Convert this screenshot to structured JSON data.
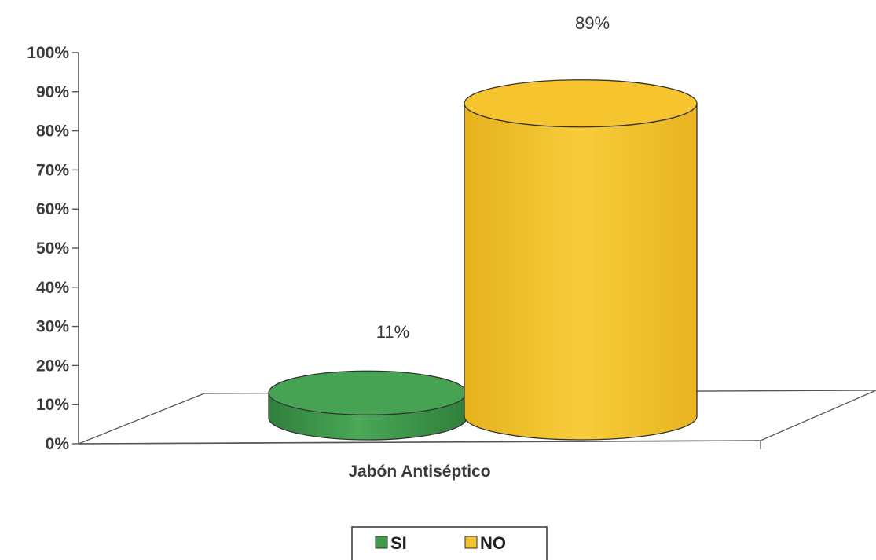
{
  "chart_data": {
    "type": "bar",
    "style": "3d-cylinder",
    "categories": [
      "Jabón Antiséptico"
    ],
    "series": [
      {
        "name": "SI",
        "values": [
          11
        ],
        "label": "11%",
        "color": "#3f9a4b"
      },
      {
        "name": "NO",
        "values": [
          89
        ],
        "label": "89%",
        "color": "#f2c230"
      }
    ],
    "y_ticks": [
      "0%",
      "10%",
      "20%",
      "30%",
      "40%",
      "50%",
      "60%",
      "70%",
      "80%",
      "90%",
      "100%"
    ],
    "ylim": [
      0,
      100
    ],
    "grid": false,
    "legend_position": "bottom",
    "colors": {
      "axis": "#555555",
      "outline": "#333333"
    }
  }
}
